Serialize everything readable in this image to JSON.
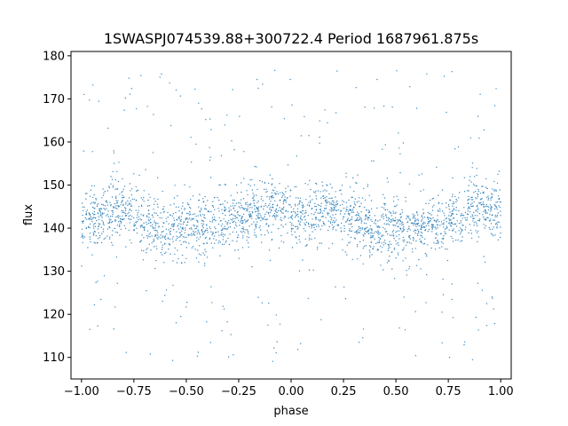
{
  "chart_data": {
    "type": "scatter",
    "title": "1SWASPJ074539.88+300722.4 Period 1687961.875s",
    "xlabel": "phase",
    "ylabel": "flux",
    "xlim": [
      -1.05,
      1.05
    ],
    "ylim": [
      105,
      181
    ],
    "xticks": [
      -1.0,
      -0.75,
      -0.5,
      -0.25,
      0.0,
      0.25,
      0.5,
      0.75,
      1.0
    ],
    "xtick_labels": [
      "−1.00",
      "−0.75",
      "−0.50",
      "−0.25",
      "0.00",
      "0.25",
      "0.50",
      "0.75",
      "1.00"
    ],
    "yticks": [
      110,
      120,
      130,
      140,
      150,
      160,
      170,
      180
    ],
    "ytick_labels": [
      "110",
      "120",
      "130",
      "140",
      "150",
      "160",
      "170",
      "180"
    ],
    "grid": false,
    "point_color": "#1f77b4",
    "series": [
      {
        "profile_phase": [
          0.0,
          0.05,
          0.1,
          0.15,
          0.2,
          0.25,
          0.3,
          0.35,
          0.4,
          0.45,
          0.5,
          0.55,
          0.6,
          0.65,
          0.7,
          0.75,
          0.8,
          0.85,
          0.9,
          0.95,
          1.0
        ],
        "profile_flux": [
          141,
          142,
          143,
          144,
          144,
          143,
          142,
          141,
          140,
          140,
          140,
          140,
          140,
          141,
          141,
          142,
          143,
          144,
          145,
          145,
          144
        ],
        "scatter_sd": 3.5,
        "range_min": 109,
        "range_max": 177
      }
    ]
  }
}
